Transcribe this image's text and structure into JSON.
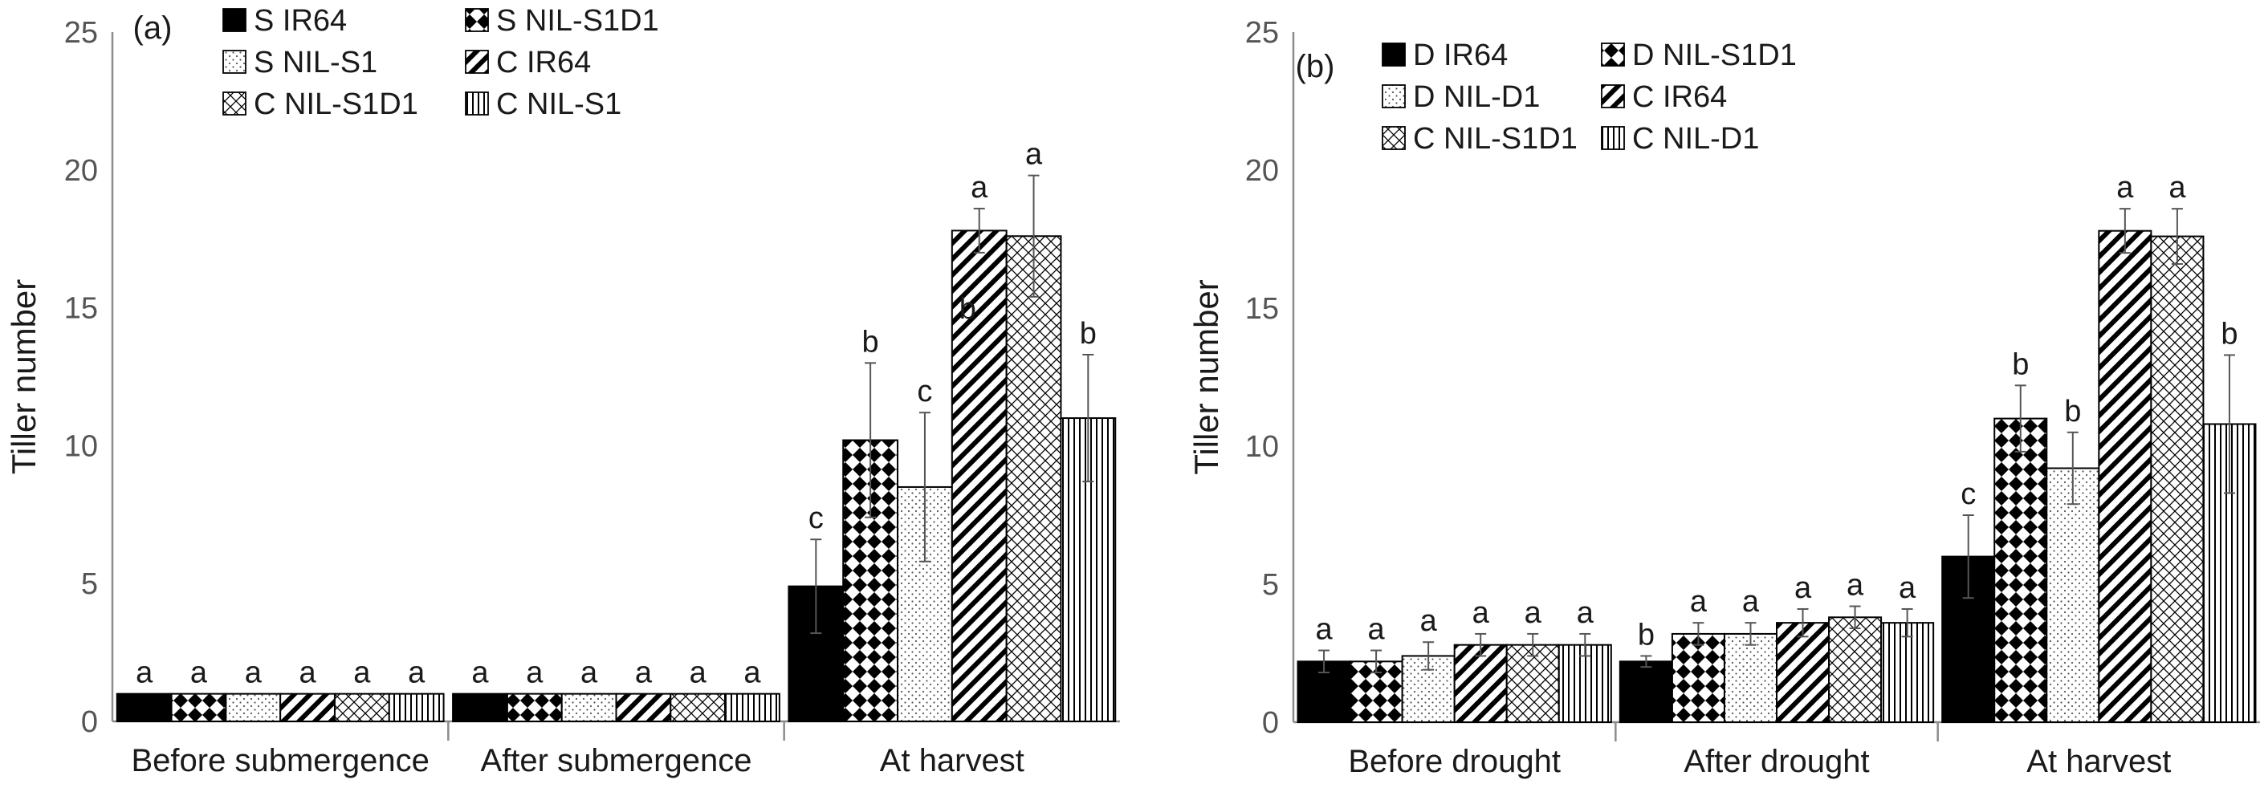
{
  "chart_data": [
    {
      "type": "bar",
      "panel": "(a)",
      "ylabel": "Tiller number",
      "ylim": [
        0,
        25
      ],
      "yticks": [
        0,
        5,
        10,
        15,
        20,
        25
      ],
      "categories": [
        "Before submergence",
        "After submergence",
        "At harvest"
      ],
      "legend_position": "top-left",
      "series": [
        {
          "name": "S IR64",
          "pattern": "solid",
          "values": [
            1,
            1,
            4.9
          ],
          "errors": [
            0,
            0,
            1.7
          ],
          "labels": [
            "a",
            "a",
            "c"
          ]
        },
        {
          "name": "S NIL-S1D1",
          "pattern": "checker",
          "values": [
            1,
            1,
            10.2
          ],
          "errors": [
            0,
            0,
            2.8
          ],
          "labels": [
            "a",
            "a",
            "b"
          ]
        },
        {
          "name": "S NIL-S1",
          "pattern": "dots",
          "values": [
            1,
            1,
            8.5
          ],
          "errors": [
            0,
            0,
            2.7
          ],
          "labels": [
            "a",
            "a",
            "c"
          ]
        },
        {
          "name": "C IR64",
          "pattern": "diag-wide",
          "values": [
            1,
            1,
            17.8
          ],
          "errors": [
            0,
            0,
            0.8
          ],
          "labels": [
            "a",
            "a",
            "a"
          ]
        },
        {
          "name": "C NIL-S1D1",
          "pattern": "diamond",
          "values": [
            1,
            1,
            17.6
          ],
          "errors": [
            0,
            0,
            2.2
          ],
          "labels": [
            "a",
            "a",
            "a"
          ]
        },
        {
          "name": "C NIL-S1",
          "pattern": "vertical",
          "values": [
            1,
            1,
            11.0
          ],
          "errors": [
            0,
            0,
            2.3
          ],
          "labels": [
            "a",
            "a",
            "b"
          ],
          "extra_label_left": "b"
        }
      ]
    },
    {
      "type": "bar",
      "panel": "(b)",
      "ylabel": "Tiller number",
      "ylim": [
        0,
        25
      ],
      "yticks": [
        0,
        5,
        10,
        15,
        20,
        25
      ],
      "categories": [
        "Before drought",
        "After drought",
        "At harvest"
      ],
      "legend_position": "top-left",
      "series": [
        {
          "name": "D IR64",
          "pattern": "solid",
          "values": [
            2.2,
            2.2,
            6.0
          ],
          "errors": [
            0.4,
            0.2,
            1.5
          ],
          "labels": [
            "a",
            "b",
            "c"
          ]
        },
        {
          "name": "D NIL-S1D1",
          "pattern": "checker",
          "values": [
            2.2,
            3.2,
            11.0
          ],
          "errors": [
            0.4,
            0.4,
            1.2
          ],
          "labels": [
            "a",
            "a",
            "b"
          ]
        },
        {
          "name": "D NIL-D1",
          "pattern": "dots",
          "values": [
            2.4,
            3.2,
            9.2
          ],
          "errors": [
            0.5,
            0.4,
            1.3
          ],
          "labels": [
            "a",
            "a",
            "b"
          ]
        },
        {
          "name": "C IR64",
          "pattern": "diag-wide",
          "values": [
            2.8,
            3.6,
            17.8
          ],
          "errors": [
            0.4,
            0.5,
            0.8
          ],
          "labels": [
            "a",
            "a",
            "a"
          ]
        },
        {
          "name": "C NIL-S1D1",
          "pattern": "diamond",
          "values": [
            2.8,
            3.8,
            17.6
          ],
          "errors": [
            0.4,
            0.4,
            1.0
          ],
          "labels": [
            "a",
            "a",
            "a"
          ]
        },
        {
          "name": "C NIL-D1",
          "pattern": "vertical",
          "values": [
            2.8,
            3.6,
            10.8
          ],
          "errors": [
            0.4,
            0.5,
            2.5
          ],
          "labels": [
            "a",
            "a",
            "b"
          ]
        }
      ]
    }
  ]
}
